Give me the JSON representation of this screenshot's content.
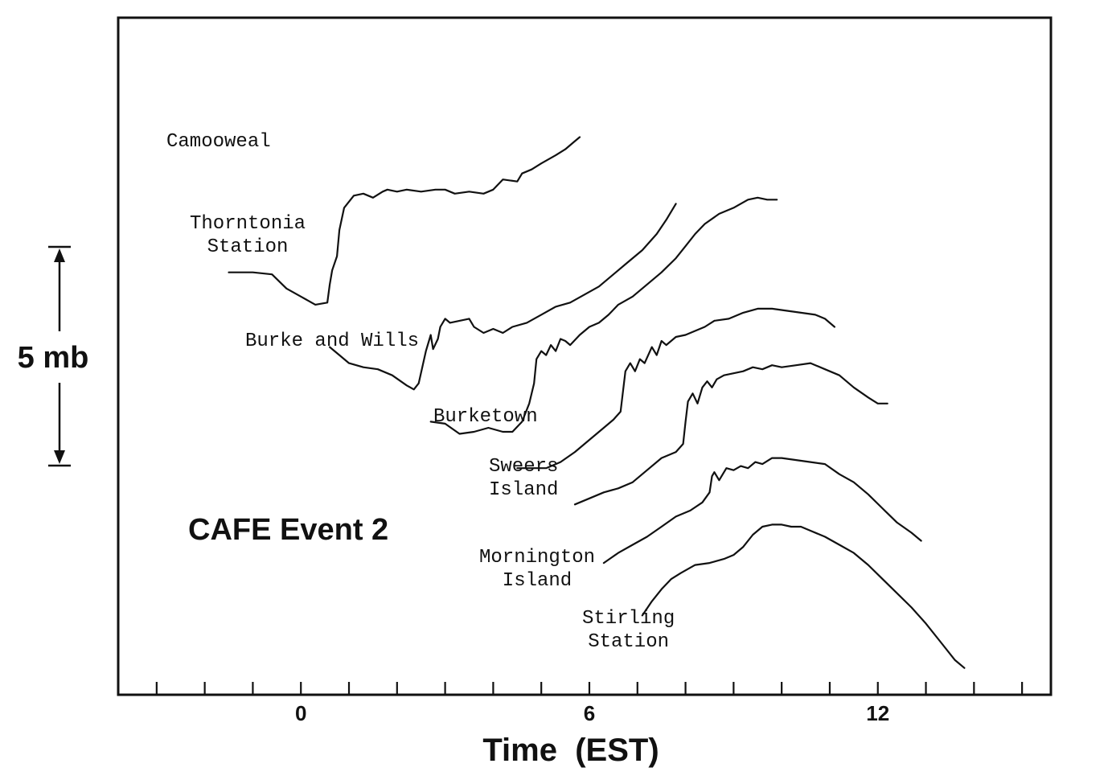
{
  "chart_data": {
    "type": "line",
    "title": "CAFE Event 2",
    "xlabel": "Time  (EST)",
    "xlim": [
      -3.8,
      15.6
    ],
    "x_ticks": [
      -3,
      -2,
      -1,
      0,
      1,
      2,
      3,
      4,
      5,
      6,
      7,
      8,
      9,
      10,
      11,
      12,
      13,
      14,
      15
    ],
    "x_tick_labels": [
      {
        "x": 0,
        "label": "0"
      },
      {
        "x": 6,
        "label": "6"
      },
      {
        "x": 12,
        "label": "12"
      }
    ],
    "y_scale_label": "5 mb",
    "y_scale_mb": 5,
    "series": [
      {
        "name": "Camooweal",
        "label_lines": [
          "Camooweal"
        ],
        "points": [
          [
            -1.5,
            -11.9
          ],
          [
            -1.0,
            -11.9
          ],
          [
            -0.6,
            -12.0
          ],
          [
            -0.3,
            -12.7
          ],
          [
            0.0,
            -13.1
          ],
          [
            0.3,
            -13.5
          ],
          [
            0.55,
            -13.4
          ],
          [
            0.6,
            -12.5
          ],
          [
            0.65,
            -11.8
          ],
          [
            0.75,
            -11.1
          ],
          [
            0.8,
            -9.8
          ],
          [
            0.9,
            -8.7
          ],
          [
            1.1,
            -8.1
          ],
          [
            1.3,
            -8.0
          ],
          [
            1.5,
            -8.2
          ],
          [
            1.7,
            -7.9
          ],
          [
            1.8,
            -7.8
          ],
          [
            2.0,
            -7.9
          ],
          [
            2.2,
            -7.8
          ],
          [
            2.5,
            -7.9
          ],
          [
            2.8,
            -7.8
          ],
          [
            3.0,
            -7.8
          ],
          [
            3.2,
            -8.0
          ],
          [
            3.5,
            -7.9
          ],
          [
            3.8,
            -8.0
          ],
          [
            4.0,
            -7.8
          ],
          [
            4.2,
            -7.3
          ],
          [
            4.5,
            -7.4
          ],
          [
            4.6,
            -7.0
          ],
          [
            4.8,
            -6.8
          ],
          [
            5.0,
            -6.5
          ],
          [
            5.3,
            -6.1
          ],
          [
            5.5,
            -5.8
          ],
          [
            5.7,
            -5.4
          ],
          [
            5.8,
            -5.2
          ]
        ]
      },
      {
        "name": "Thorntonia Station",
        "label_lines": [
          "Thorntonia",
          "Station"
        ],
        "points": [
          [
            0.6,
            -15.6
          ],
          [
            0.8,
            -16.0
          ],
          [
            1.0,
            -16.4
          ],
          [
            1.3,
            -16.6
          ],
          [
            1.6,
            -16.7
          ],
          [
            1.9,
            -17.0
          ],
          [
            2.2,
            -17.5
          ],
          [
            2.35,
            -17.7
          ],
          [
            2.45,
            -17.4
          ],
          [
            2.6,
            -15.8
          ],
          [
            2.7,
            -15.0
          ],
          [
            2.75,
            -15.7
          ],
          [
            2.85,
            -15.2
          ],
          [
            2.9,
            -14.6
          ],
          [
            3.0,
            -14.2
          ],
          [
            3.1,
            -14.4
          ],
          [
            3.3,
            -14.3
          ],
          [
            3.5,
            -14.2
          ],
          [
            3.6,
            -14.6
          ],
          [
            3.8,
            -14.9
          ],
          [
            4.0,
            -14.7
          ],
          [
            4.2,
            -14.9
          ],
          [
            4.4,
            -14.6
          ],
          [
            4.7,
            -14.4
          ],
          [
            5.0,
            -14.0
          ],
          [
            5.3,
            -13.6
          ],
          [
            5.6,
            -13.4
          ],
          [
            5.9,
            -13.0
          ],
          [
            6.2,
            -12.6
          ],
          [
            6.5,
            -12.0
          ],
          [
            6.8,
            -11.4
          ],
          [
            7.1,
            -10.8
          ],
          [
            7.4,
            -10.0
          ],
          [
            7.6,
            -9.3
          ],
          [
            7.8,
            -8.5
          ]
        ]
      },
      {
        "name": "Burke and Wills",
        "label_lines": [
          "Burke and Wills"
        ],
        "points": [
          [
            2.7,
            -19.3
          ],
          [
            3.0,
            -19.4
          ],
          [
            3.3,
            -19.9
          ],
          [
            3.6,
            -19.8
          ],
          [
            3.9,
            -19.6
          ],
          [
            4.2,
            -19.8
          ],
          [
            4.4,
            -19.8
          ],
          [
            4.6,
            -19.3
          ],
          [
            4.75,
            -18.4
          ],
          [
            4.85,
            -17.4
          ],
          [
            4.9,
            -16.2
          ],
          [
            5.0,
            -15.8
          ],
          [
            5.1,
            -16.0
          ],
          [
            5.2,
            -15.5
          ],
          [
            5.3,
            -15.8
          ],
          [
            5.4,
            -15.2
          ],
          [
            5.5,
            -15.3
          ],
          [
            5.6,
            -15.5
          ],
          [
            5.8,
            -15.0
          ],
          [
            6.0,
            -14.6
          ],
          [
            6.2,
            -14.4
          ],
          [
            6.4,
            -14.0
          ],
          [
            6.6,
            -13.5
          ],
          [
            6.9,
            -13.1
          ],
          [
            7.2,
            -12.5
          ],
          [
            7.5,
            -11.9
          ],
          [
            7.8,
            -11.2
          ],
          [
            8.0,
            -10.6
          ],
          [
            8.2,
            -10.0
          ],
          [
            8.4,
            -9.5
          ],
          [
            8.7,
            -9.0
          ],
          [
            9.0,
            -8.7
          ],
          [
            9.3,
            -8.3
          ],
          [
            9.5,
            -8.2
          ],
          [
            9.7,
            -8.3
          ],
          [
            9.9,
            -8.3
          ]
        ]
      },
      {
        "name": "Burketown",
        "label_lines": [
          "Burketown"
        ],
        "points": [
          [
            4.5,
            -21.6
          ],
          [
            4.8,
            -21.6
          ],
          [
            5.1,
            -21.6
          ],
          [
            5.4,
            -21.3
          ],
          [
            5.7,
            -20.8
          ],
          [
            6.0,
            -20.2
          ],
          [
            6.3,
            -19.6
          ],
          [
            6.5,
            -19.2
          ],
          [
            6.65,
            -18.8
          ],
          [
            6.7,
            -17.8
          ],
          [
            6.75,
            -16.8
          ],
          [
            6.85,
            -16.4
          ],
          [
            6.95,
            -16.8
          ],
          [
            7.05,
            -16.2
          ],
          [
            7.15,
            -16.4
          ],
          [
            7.3,
            -15.6
          ],
          [
            7.4,
            -16.0
          ],
          [
            7.5,
            -15.3
          ],
          [
            7.6,
            -15.5
          ],
          [
            7.8,
            -15.1
          ],
          [
            8.0,
            -15.0
          ],
          [
            8.2,
            -14.8
          ],
          [
            8.4,
            -14.6
          ],
          [
            8.6,
            -14.3
          ],
          [
            8.9,
            -14.2
          ],
          [
            9.2,
            -13.9
          ],
          [
            9.5,
            -13.7
          ],
          [
            9.8,
            -13.7
          ],
          [
            10.1,
            -13.8
          ],
          [
            10.4,
            -13.9
          ],
          [
            10.7,
            -14.0
          ],
          [
            10.9,
            -14.2
          ],
          [
            11.1,
            -14.6
          ]
        ]
      },
      {
        "name": "Sweers Island",
        "label_lines": [
          "Sweers",
          "Island"
        ],
        "points": [
          [
            5.7,
            -23.4
          ],
          [
            6.0,
            -23.1
          ],
          [
            6.3,
            -22.8
          ],
          [
            6.6,
            -22.6
          ],
          [
            6.9,
            -22.3
          ],
          [
            7.2,
            -21.7
          ],
          [
            7.5,
            -21.1
          ],
          [
            7.8,
            -20.8
          ],
          [
            7.95,
            -20.4
          ],
          [
            8.0,
            -19.3
          ],
          [
            8.05,
            -18.3
          ],
          [
            8.15,
            -17.9
          ],
          [
            8.25,
            -18.4
          ],
          [
            8.35,
            -17.6
          ],
          [
            8.45,
            -17.3
          ],
          [
            8.55,
            -17.6
          ],
          [
            8.65,
            -17.2
          ],
          [
            8.8,
            -17.0
          ],
          [
            9.0,
            -16.9
          ],
          [
            9.2,
            -16.8
          ],
          [
            9.4,
            -16.6
          ],
          [
            9.6,
            -16.7
          ],
          [
            9.8,
            -16.5
          ],
          [
            10.0,
            -16.6
          ],
          [
            10.3,
            -16.5
          ],
          [
            10.6,
            -16.4
          ],
          [
            10.9,
            -16.7
          ],
          [
            11.2,
            -17.0
          ],
          [
            11.5,
            -17.6
          ],
          [
            11.8,
            -18.1
          ],
          [
            12.0,
            -18.4
          ],
          [
            12.2,
            -18.4
          ]
        ]
      },
      {
        "name": "Mornington Island",
        "label_lines": [
          "Mornington",
          "Island"
        ],
        "points": [
          [
            6.3,
            -26.3
          ],
          [
            6.6,
            -25.8
          ],
          [
            6.9,
            -25.4
          ],
          [
            7.2,
            -25.0
          ],
          [
            7.5,
            -24.5
          ],
          [
            7.8,
            -24.0
          ],
          [
            8.1,
            -23.7
          ],
          [
            8.35,
            -23.3
          ],
          [
            8.5,
            -22.8
          ],
          [
            8.55,
            -22.0
          ],
          [
            8.6,
            -21.8
          ],
          [
            8.7,
            -22.2
          ],
          [
            8.85,
            -21.6
          ],
          [
            9.0,
            -21.7
          ],
          [
            9.15,
            -21.5
          ],
          [
            9.3,
            -21.6
          ],
          [
            9.45,
            -21.3
          ],
          [
            9.6,
            -21.4
          ],
          [
            9.8,
            -21.1
          ],
          [
            10.0,
            -21.1
          ],
          [
            10.3,
            -21.2
          ],
          [
            10.6,
            -21.3
          ],
          [
            10.9,
            -21.4
          ],
          [
            11.2,
            -21.9
          ],
          [
            11.5,
            -22.3
          ],
          [
            11.8,
            -22.9
          ],
          [
            12.1,
            -23.6
          ],
          [
            12.4,
            -24.3
          ],
          [
            12.7,
            -24.8
          ],
          [
            12.9,
            -25.2
          ]
        ]
      },
      {
        "name": "Stirling Station",
        "label_lines": [
          "Stirling",
          "Station"
        ],
        "points": [
          [
            7.1,
            -28.9
          ],
          [
            7.3,
            -28.2
          ],
          [
            7.5,
            -27.6
          ],
          [
            7.7,
            -27.1
          ],
          [
            7.9,
            -26.8
          ],
          [
            8.2,
            -26.4
          ],
          [
            8.5,
            -26.3
          ],
          [
            8.8,
            -26.1
          ],
          [
            9.0,
            -25.9
          ],
          [
            9.2,
            -25.5
          ],
          [
            9.4,
            -24.9
          ],
          [
            9.6,
            -24.5
          ],
          [
            9.8,
            -24.4
          ],
          [
            10.0,
            -24.4
          ],
          [
            10.2,
            -24.5
          ],
          [
            10.4,
            -24.5
          ],
          [
            10.6,
            -24.7
          ],
          [
            10.9,
            -25.0
          ],
          [
            11.2,
            -25.4
          ],
          [
            11.5,
            -25.8
          ],
          [
            11.8,
            -26.4
          ],
          [
            12.1,
            -27.1
          ],
          [
            12.4,
            -27.8
          ],
          [
            12.7,
            -28.5
          ],
          [
            13.0,
            -29.3
          ],
          [
            13.3,
            -30.2
          ],
          [
            13.6,
            -31.1
          ],
          [
            13.8,
            -31.5
          ]
        ]
      }
    ]
  }
}
